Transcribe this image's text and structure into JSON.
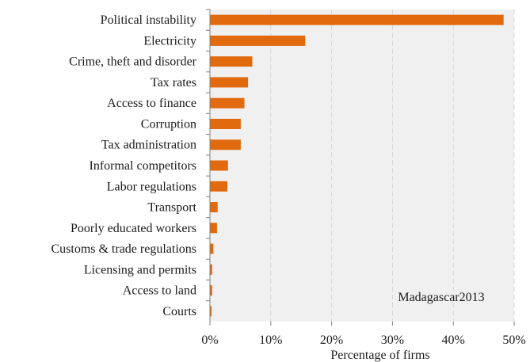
{
  "chart_data": {
    "type": "bar",
    "orientation": "horizontal",
    "categories": [
      "Political instability",
      "Electricity",
      "Crime, theft and disorder",
      "Tax rates",
      "Access to finance",
      "Corruption",
      "Tax administration",
      "Informal competitors",
      "Labor regulations",
      "Transport",
      "Poorly educated workers",
      "Customs & trade regulations",
      "Licensing and permits",
      "Access to land",
      "Courts"
    ],
    "values": [
      48.2,
      15.6,
      6.9,
      6.2,
      5.6,
      5.0,
      5.0,
      2.9,
      2.8,
      1.2,
      1.1,
      0.5,
      0.3,
      0.3,
      0.2
    ],
    "x_ticks": [
      "0%",
      "10%",
      "20%",
      "30%",
      "40%",
      "50%"
    ],
    "xlim": [
      0,
      50
    ],
    "xlabel": "Percentage  of firms",
    "ylabel": "",
    "title": "",
    "annotation": "Madagascar2013",
    "grid": "vertical dashed",
    "colors": {
      "bar": "#e26a0e",
      "plot_background": "#f0f0f0",
      "grid": "#d6d6d6",
      "axis": "#7f7f7f"
    }
  }
}
